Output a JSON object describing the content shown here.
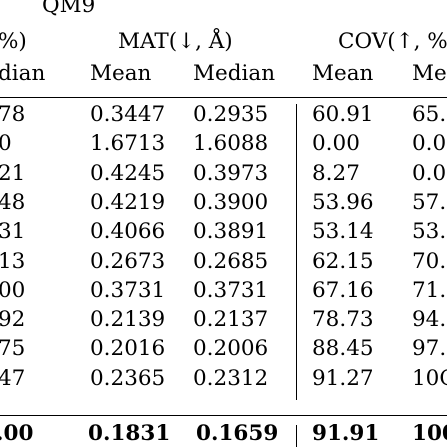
{
  "table": {
    "dataset": "QM9",
    "group_headers": {
      "left_fragment": "%)",
      "mat": "MAT(↓, Å)",
      "cov": "COV(↑, %"
    },
    "sub_headers": [
      "dian",
      "Mean",
      "Median",
      "Mean",
      "Me"
    ],
    "rows": [
      {
        "c0": "78",
        "mat_mean": "0.3447",
        "mat_median": "0.2935",
        "cov_mean": "60.91",
        "c4": "65."
      },
      {
        "c0": "0",
        "mat_mean": "1.6713",
        "mat_median": "1.6088",
        "cov_mean": "0.00",
        "c4": "0.0"
      },
      {
        "c0": "21",
        "mat_mean": "0.4245",
        "mat_median": "0.3973",
        "cov_mean": "8.27",
        "c4": "0.0"
      },
      {
        "c0": "48",
        "mat_mean": "0.4219",
        "mat_median": "0.3900",
        "cov_mean": "53.96",
        "c4": "57."
      },
      {
        "c0": "31",
        "mat_mean": "0.4066",
        "mat_median": "0.3891",
        "cov_mean": "53.14",
        "c4": "53."
      },
      {
        "c0": "13",
        "mat_mean": "0.2673",
        "mat_median": "0.2685",
        "cov_mean": "62.15",
        "c4": "70."
      },
      {
        "c0": "00",
        "mat_mean": "0.3731",
        "mat_median": "0.3731",
        "cov_mean": "67.16",
        "c4": "71."
      },
      {
        "c0": "92",
        "mat_mean": "0.2139",
        "mat_median": "0.2137",
        "cov_mean": "78.73",
        "c4": "94."
      },
      {
        "c0": "75",
        "mat_mean": "0.2016",
        "mat_median": "0.2006",
        "cov_mean": "88.45",
        "c4": "97."
      },
      {
        "c0": "47",
        "mat_mean": "0.2365",
        "mat_median": "0.2312",
        "cov_mean": "91.27",
        "c4": "10C"
      }
    ],
    "final_row": {
      "c0": ".00",
      "mat_mean": "0.1831",
      "mat_median": "0.1659",
      "cov_mean": "91.91",
      "c4": "100"
    }
  }
}
